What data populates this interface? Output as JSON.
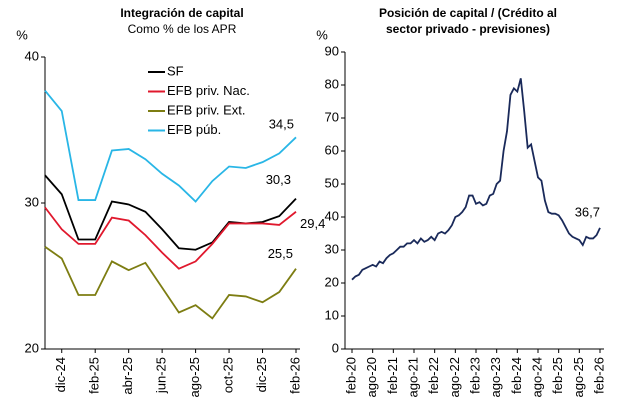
{
  "chart_data": [
    {
      "type": "line",
      "title": "Integración de capital",
      "subtitle": "Como % de los APR",
      "y_label": "%",
      "categories": [
        null,
        "dic-24",
        null,
        "feb-25",
        null,
        "abr-25",
        null,
        "jun-25",
        null,
        "ago-25",
        null,
        "oct-25",
        null,
        "dic-25",
        null,
        "feb-26"
      ],
      "series": [
        {
          "name": "SF",
          "color": "#000000",
          "values": [
            31.9,
            30.6,
            27.5,
            27.5,
            30.1,
            29.9,
            29.4,
            28.2,
            26.9,
            26.8,
            27.3,
            28.7,
            28.6,
            28.7,
            29.1,
            30.3
          ],
          "value_labels": [
            null,
            null,
            null,
            null,
            null,
            null,
            null,
            null,
            null,
            null,
            null,
            null,
            null,
            null,
            null,
            "30,3"
          ]
        },
        {
          "name": "EFB priv. Nac.",
          "color": "#e0182d",
          "values": [
            29.7,
            28.2,
            27.2,
            27.2,
            29.0,
            28.8,
            27.8,
            26.6,
            25.5,
            26.0,
            27.2,
            28.6,
            28.6,
            28.6,
            28.5,
            29.4
          ],
          "value_labels": [
            null,
            null,
            null,
            null,
            null,
            null,
            null,
            null,
            null,
            null,
            null,
            null,
            null,
            null,
            null,
            "29,4"
          ]
        },
        {
          "name": "EFB priv. Ext.",
          "color": "#7d7d12",
          "values": [
            27.0,
            26.2,
            23.7,
            23.7,
            26.0,
            25.4,
            25.9,
            24.2,
            22.5,
            23.0,
            22.1,
            23.7,
            23.6,
            23.2,
            23.9,
            25.5
          ],
          "value_labels": [
            null,
            null,
            null,
            null,
            null,
            null,
            null,
            null,
            null,
            null,
            null,
            null,
            null,
            null,
            null,
            "25,5"
          ]
        },
        {
          "name": "EFB púb.",
          "color": "#29b6e6",
          "values": [
            37.7,
            36.3,
            30.2,
            30.2,
            33.6,
            33.7,
            33.0,
            32.0,
            31.2,
            30.1,
            31.5,
            32.5,
            32.4,
            32.8,
            33.4,
            34.5
          ],
          "value_labels": [
            null,
            null,
            null,
            null,
            null,
            null,
            null,
            null,
            null,
            null,
            null,
            null,
            null,
            null,
            null,
            "34,5"
          ]
        }
      ],
      "ylim": [
        20,
        40
      ],
      "yticks": [
        20,
        30,
        40
      ],
      "legend": true
    },
    {
      "type": "line",
      "title": [
        "Posición de capital / (Crédito al",
        "sector privado - previsiones)"
      ],
      "y_label": "%",
      "categories": [
        "feb-20",
        null,
        null,
        null,
        null,
        null,
        "ago-20",
        null,
        null,
        null,
        null,
        null,
        "feb-21",
        null,
        null,
        null,
        null,
        null,
        "ago-21",
        null,
        null,
        null,
        null,
        null,
        "feb-22",
        null,
        null,
        null,
        null,
        null,
        "ago-22",
        null,
        null,
        null,
        null,
        null,
        "feb-23",
        null,
        null,
        null,
        null,
        null,
        "ago-23",
        null,
        null,
        null,
        null,
        null,
        "feb-24",
        null,
        null,
        null,
        null,
        null,
        "ago-24",
        null,
        null,
        null,
        null,
        null,
        "feb-25",
        null,
        null,
        null,
        null,
        null,
        "ago-25",
        null,
        null,
        null,
        null,
        null,
        "feb-26"
      ],
      "series": [
        {
          "color": "#1a2a5a",
          "values": [
            21,
            22,
            22.5,
            24,
            24.5,
            25,
            25.5,
            25,
            26.5,
            26,
            27.5,
            28.5,
            29,
            30,
            31,
            31,
            32,
            32,
            33,
            32,
            33.5,
            32.5,
            33,
            34,
            33,
            35,
            35.5,
            35,
            36,
            37.5,
            40,
            40.5,
            41.5,
            43,
            46.5,
            46.5,
            44,
            44.5,
            43.5,
            44,
            46.5,
            47,
            50,
            51,
            60,
            66,
            77,
            79,
            78,
            82,
            72,
            61,
            62,
            57,
            52,
            51,
            45,
            41.5,
            41,
            41,
            40.5,
            39,
            37,
            35,
            34,
            33.5,
            33,
            31.5,
            34,
            33.5,
            33.5,
            34.5,
            36.7
          ],
          "value_labels": [
            null,
            null,
            null,
            null,
            null,
            null,
            null,
            null,
            null,
            null,
            null,
            null,
            null,
            null,
            null,
            null,
            null,
            null,
            null,
            null,
            null,
            null,
            null,
            null,
            null,
            null,
            null,
            null,
            null,
            null,
            null,
            null,
            null,
            null,
            null,
            null,
            null,
            null,
            null,
            null,
            null,
            null,
            null,
            null,
            null,
            null,
            null,
            null,
            null,
            null,
            null,
            null,
            null,
            null,
            null,
            null,
            null,
            null,
            null,
            null,
            null,
            null,
            null,
            null,
            null,
            null,
            null,
            null,
            null,
            null,
            null,
            null,
            "36,7"
          ]
        }
      ],
      "ylim": [
        0,
        90
      ],
      "yticks": [
        0,
        10,
        20,
        30,
        40,
        50,
        60,
        70,
        80,
        90
      ]
    }
  ]
}
